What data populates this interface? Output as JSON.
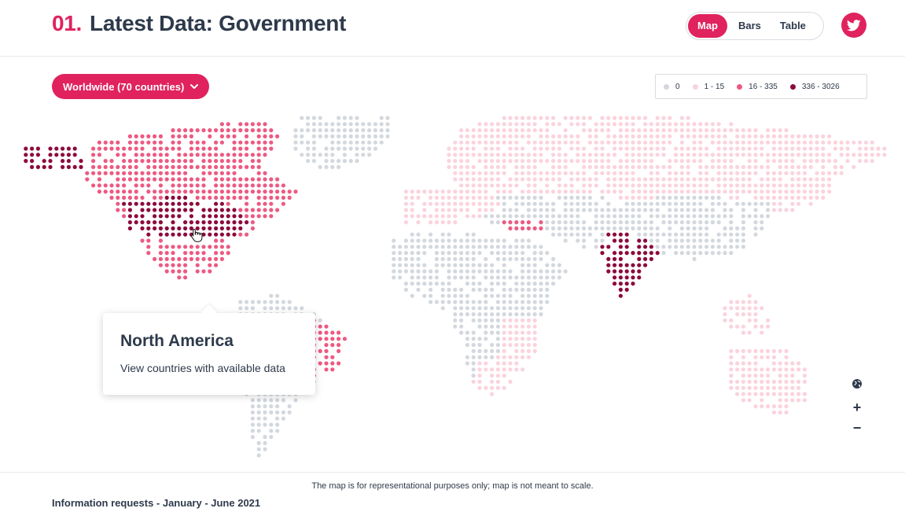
{
  "header": {
    "number": "01.",
    "title": "Latest Data: Government",
    "view_options": [
      "Map",
      "Bars",
      "Table"
    ],
    "active_view": "Map",
    "share_icon": "twitter-icon"
  },
  "filter": {
    "region_label": "Worldwide (70 countries)",
    "icon": "chevron-down-icon"
  },
  "legend": [
    {
      "label": "0",
      "color": "#d3d8de"
    },
    {
      "label": "1 - 15",
      "color": "#fbd3dd"
    },
    {
      "label": "16 - 335",
      "color": "#ec5a82"
    },
    {
      "label": "336 - 3026",
      "color": "#8c0a3c"
    }
  ],
  "tooltip": {
    "title": "North America",
    "subtitle": "View countries with available data"
  },
  "map_controls": {
    "globe_icon": "globe-icon",
    "zoom_in": "+",
    "zoom_out": "−"
  },
  "footer": {
    "note": "The map is for representational purposes only; map is not meant to scale.",
    "period": "Information requests - January - June 2021"
  }
}
